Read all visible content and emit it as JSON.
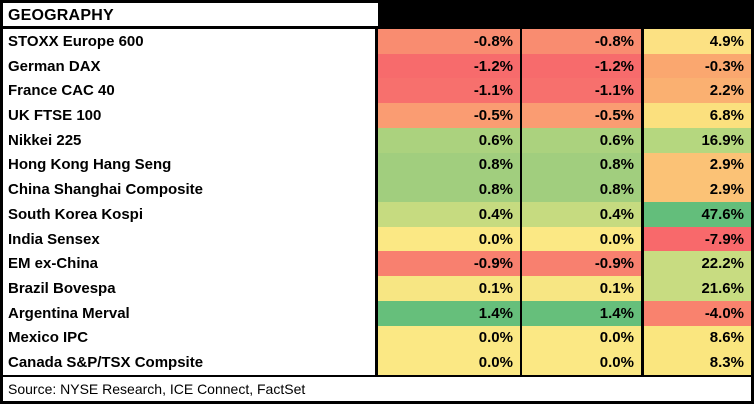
{
  "header": {
    "title": "GEOGRAPHY",
    "column_headers": [
      "",
      "",
      ""
    ],
    "column_header_bg": "#000000"
  },
  "footer": {
    "source": "Source: NYSE Research, ICE Connect, FactSet"
  },
  "style": {
    "border_color": "#000000",
    "scale_min_color": "#F8696B",
    "scale_mid_color": "#FFEB84",
    "scale_max_color": "#63BE7B"
  },
  "chart_data": {
    "type": "heatmap",
    "title": "GEOGRAPHY",
    "columns": [
      "",
      "",
      ""
    ],
    "legend_position": "none",
    "rows": [
      {
        "label": "STOXX Europe 600",
        "values": [
          "-0.8%",
          "-0.8%",
          "4.9%"
        ],
        "values_numeric": [
          -0.8,
          -0.8,
          4.9
        ],
        "colors": [
          "#F98C70",
          "#F98C70",
          "#FCE183"
        ]
      },
      {
        "label": "German DAX",
        "values": [
          "-1.2%",
          "-1.2%",
          "-0.3%"
        ],
        "values_numeric": [
          -1.2,
          -1.2,
          -0.3
        ],
        "colors": [
          "#F76B6C",
          "#F76B6C",
          "#FAA76F"
        ]
      },
      {
        "label": "France CAC 40",
        "values": [
          "-1.1%",
          "-1.1%",
          "2.2%"
        ],
        "values_numeric": [
          -1.1,
          -1.1,
          2.2
        ],
        "colors": [
          "#F7706D",
          "#F7706D",
          "#FAB071"
        ]
      },
      {
        "label": "UK FTSE 100",
        "values": [
          "-0.5%",
          "-0.5%",
          "6.8%"
        ],
        "values_numeric": [
          -0.5,
          -0.5,
          6.8
        ],
        "colors": [
          "#FA9C72",
          "#FA9C72",
          "#FBE07E"
        ]
      },
      {
        "label": "Nikkei 225",
        "values": [
          "0.6%",
          "0.6%",
          "16.9%"
        ],
        "values_numeric": [
          0.6,
          0.6,
          16.9
        ],
        "colors": [
          "#ABD27E",
          "#ABD27E",
          "#B5D77F"
        ]
      },
      {
        "label": "Hong Kong Hang Seng",
        "values": [
          "0.8%",
          "0.8%",
          "2.9%"
        ],
        "values_numeric": [
          0.8,
          0.8,
          2.9
        ],
        "colors": [
          "#A1CE7E",
          "#A1CE7E",
          "#FBC276"
        ]
      },
      {
        "label": "China Shanghai Composite",
        "values": [
          "0.8%",
          "0.8%",
          "2.9%"
        ],
        "values_numeric": [
          0.8,
          0.8,
          2.9
        ],
        "colors": [
          "#A1CE7E",
          "#A1CE7E",
          "#FBC276"
        ]
      },
      {
        "label": "South Korea Kospi",
        "values": [
          "0.4%",
          "0.4%",
          "47.6%"
        ],
        "values_numeric": [
          0.4,
          0.4,
          47.6
        ],
        "colors": [
          "#C6DB80",
          "#C6DB80",
          "#63BE7B"
        ]
      },
      {
        "label": "India Sensex",
        "values": [
          "0.0%",
          "0.0%",
          "-7.9%"
        ],
        "values_numeric": [
          0.0,
          0.0,
          -7.9
        ],
        "colors": [
          "#FBE884",
          "#FBE884",
          "#F8696B"
        ]
      },
      {
        "label": "EM ex-China",
        "values": [
          "-0.9%",
          "-0.9%",
          "22.2%"
        ],
        "values_numeric": [
          -0.9,
          -0.9,
          22.2
        ],
        "colors": [
          "#F8806F",
          "#F8806F",
          "#C8DC81"
        ]
      },
      {
        "label": "Brazil Bovespa",
        "values": [
          "0.1%",
          "0.1%",
          "21.6%"
        ],
        "values_numeric": [
          0.1,
          0.1,
          21.6
        ],
        "colors": [
          "#F7E683",
          "#F7E683",
          "#C8DC81"
        ]
      },
      {
        "label": "Argentina Merval",
        "values": [
          "1.4%",
          "1.4%",
          "-4.0%"
        ],
        "values_numeric": [
          1.4,
          1.4,
          -4.0
        ],
        "colors": [
          "#66BF7B",
          "#66BF7B",
          "#F9826E"
        ]
      },
      {
        "label": "Mexico IPC",
        "values": [
          "0.0%",
          "0.0%",
          "8.6%"
        ],
        "values_numeric": [
          0.0,
          0.0,
          8.6
        ],
        "colors": [
          "#FBE884",
          "#FBE884",
          "#FAE67F"
        ]
      },
      {
        "label": "Canada S&P/TSX Compsite",
        "values": [
          "0.0%",
          "0.0%",
          "8.3%"
        ],
        "values_numeric": [
          0.0,
          0.0,
          8.3
        ],
        "colors": [
          "#FBE884",
          "#FBE884",
          "#FAE67F"
        ]
      }
    ]
  }
}
